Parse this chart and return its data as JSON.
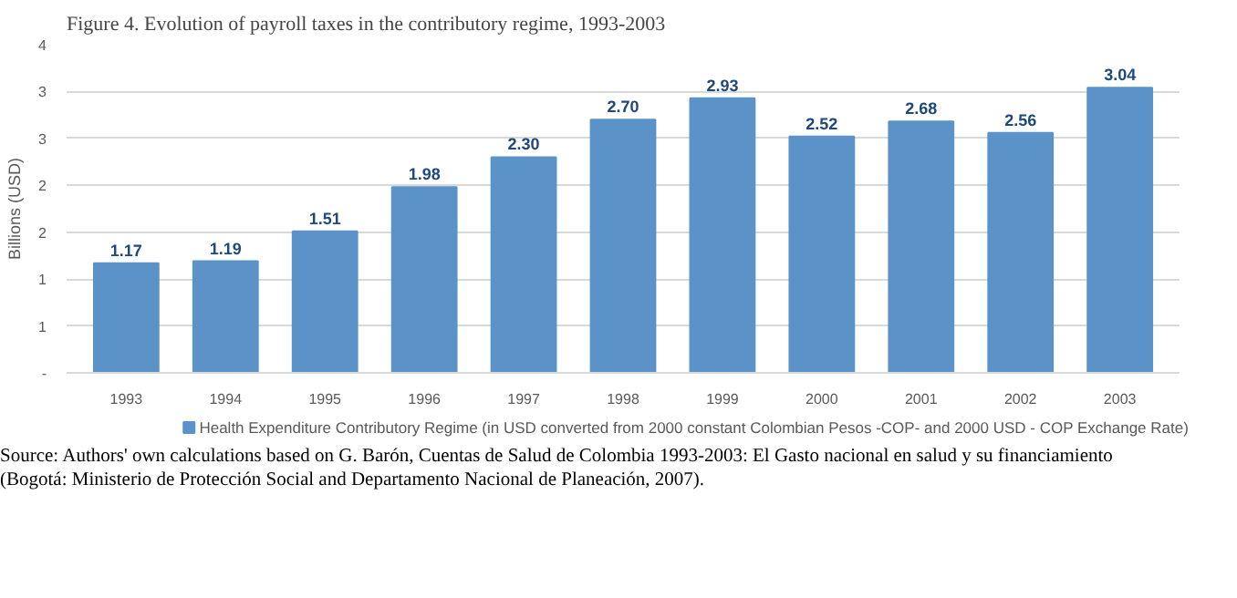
{
  "chart_data": {
    "type": "bar",
    "title": "Figure 4. Evolution of payroll taxes in the contributory regime, 1993-2003",
    "ylabel": "Billions (USD)",
    "categories": [
      "1993",
      "1994",
      "1995",
      "1996",
      "1997",
      "1998",
      "1999",
      "2000",
      "2001",
      "2002",
      "2003"
    ],
    "series": [
      {
        "name": "Health Expenditure Contributory Regime (in USD converted from 2000 constant Colombian Pesos -COP- and 2000 USD - COP Exchange Rate)",
        "color": "#5b93c9",
        "values": [
          1.17,
          1.19,
          1.51,
          1.98,
          2.3,
          2.7,
          2.93,
          2.52,
          2.68,
          2.56,
          3.04
        ]
      }
    ],
    "value_labels": [
      "1.17",
      "1.19",
      "1.51",
      "1.98",
      "2.30",
      "2.70",
      "2.93",
      "2.52",
      "2.68",
      "2.56",
      "3.04"
    ],
    "ylim": [
      0,
      3.5
    ],
    "yticks": [
      {
        "value": 0,
        "label": "-"
      },
      {
        "value": 0.5,
        "label": "1"
      },
      1,
      {
        "value": 1.5,
        "label": "2"
      },
      2,
      {
        "value": 2.5,
        "label": "3"
      },
      3,
      {
        "value": 3.5,
        "label": "4"
      }
    ],
    "grid": "y",
    "legend": "bottom",
    "annotations": [
      "Source: Authors' own calculations based on G. Barón, Cuentas de Salud de Colombia 1993-2003: El Gasto nacional en salud y su financiamiento",
      "(Bogotá: Ministerio de Protección Social and Departamento Nacional de Planeación, 2007)."
    ]
  }
}
